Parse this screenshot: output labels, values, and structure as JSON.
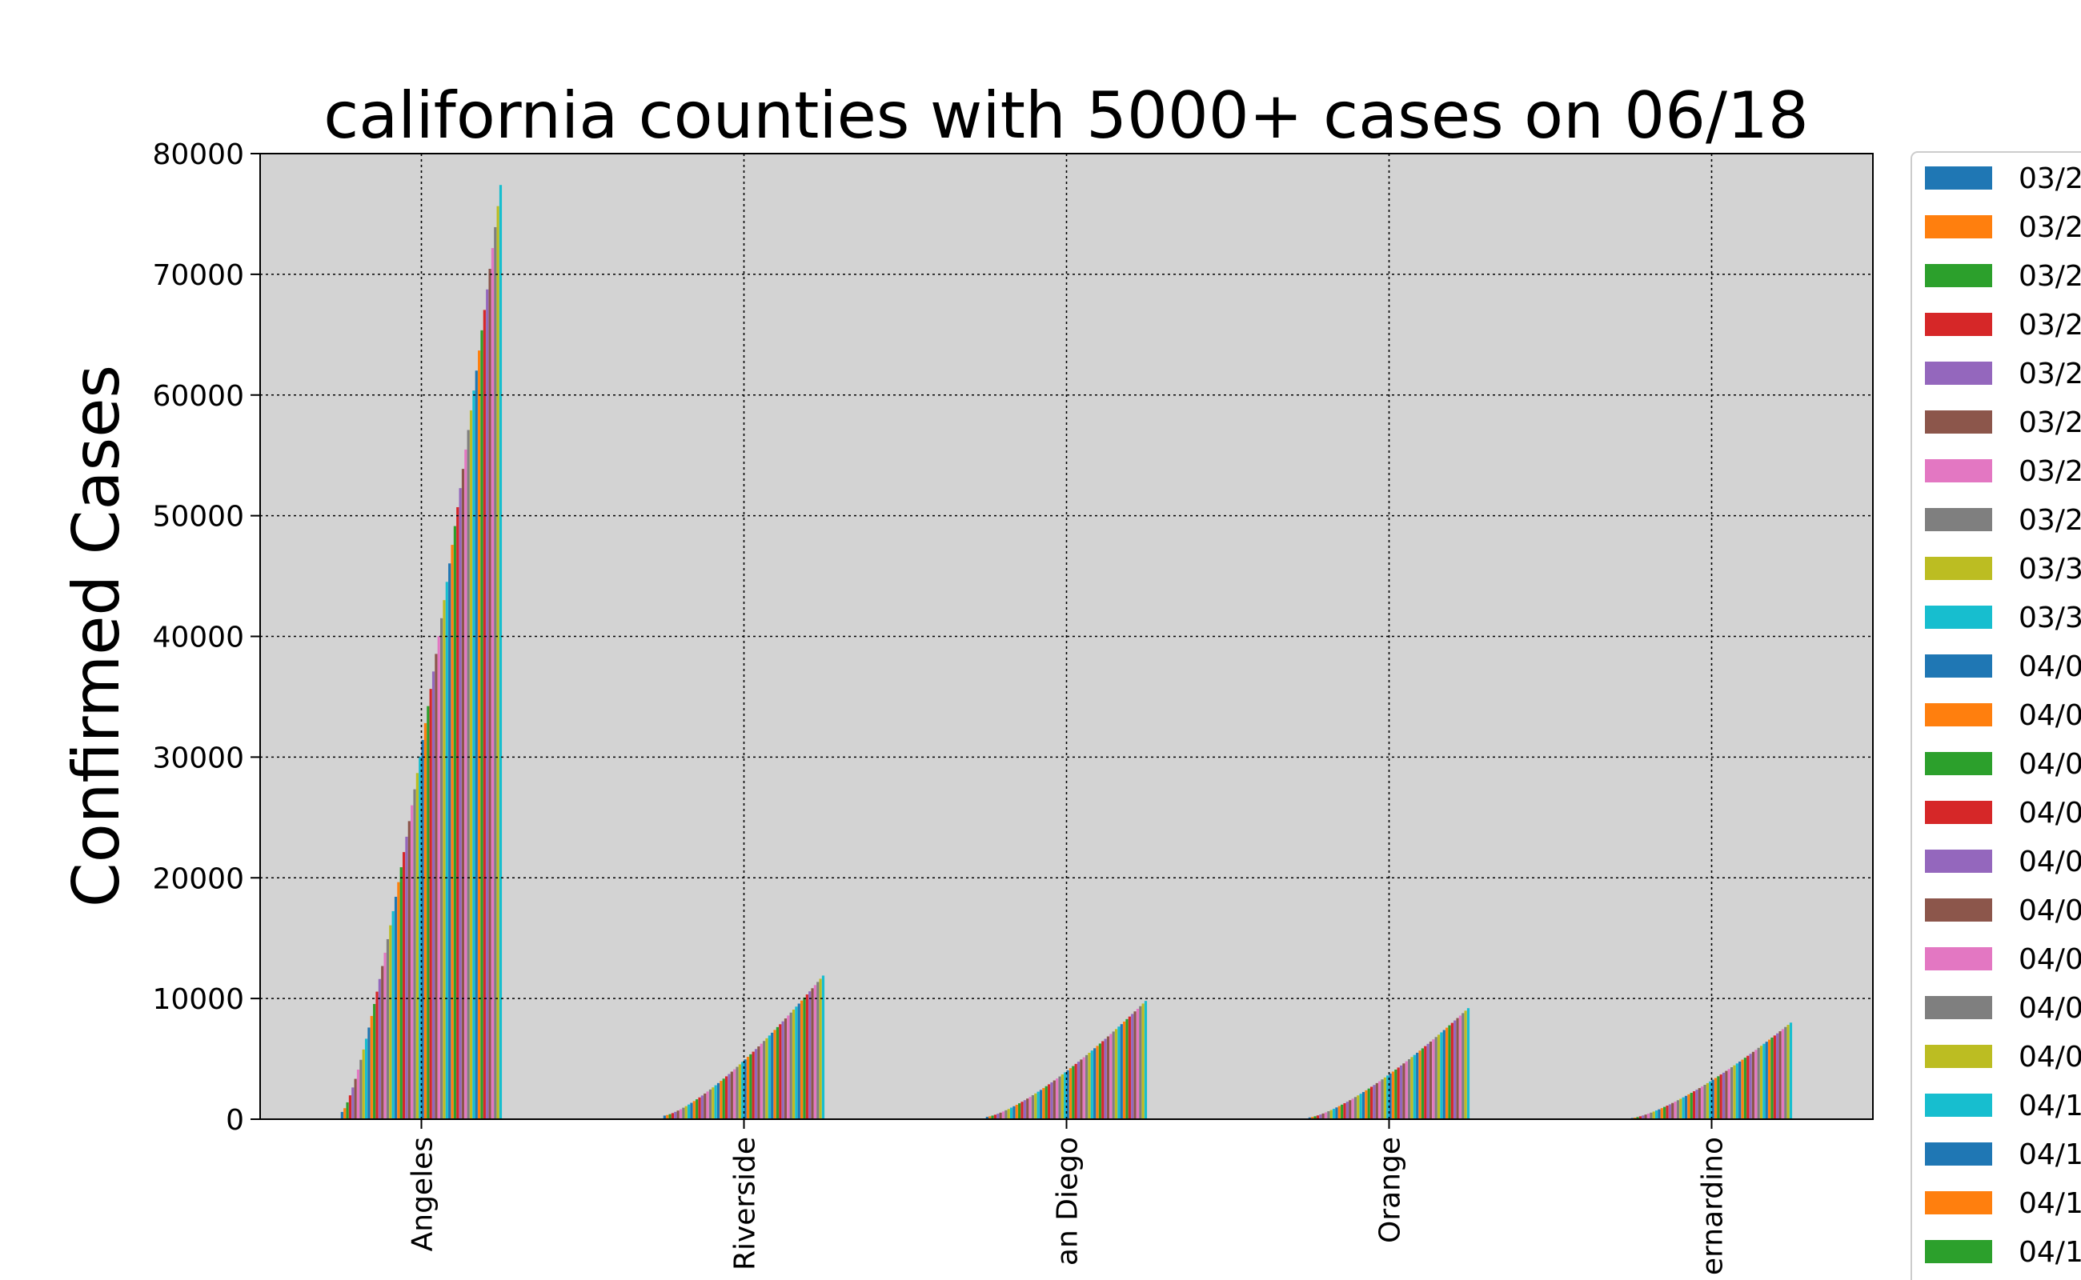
{
  "chart_data": {
    "type": "bar",
    "title": "california counties with 5000+ cases on 06/18",
    "xlabel": "",
    "ylabel": "Confirmed Cases",
    "ylim": [
      0,
      80000
    ],
    "yticks": [
      0,
      10000,
      20000,
      30000,
      40000,
      50000,
      60000,
      70000,
      80000
    ],
    "grid": true,
    "legend_position": "right (clipped)",
    "categories": [
      "Angeles",
      "Riverside",
      "an Diego",
      "Orange",
      "ernardino"
    ],
    "final_values": [
      77400,
      11900,
      9800,
      9200,
      8000
    ],
    "start_values": [
      600,
      300,
      200,
      150,
      100
    ],
    "bars_per_category": 60,
    "growth_exponent": 1.35,
    "series_colors": [
      "#1f77b4",
      "#ff7f0e",
      "#2ca02c",
      "#d62728",
      "#9467bd",
      "#8c564b",
      "#e377c2",
      "#7f7f7f",
      "#bcbd22",
      "#17becf"
    ],
    "legend_entries": [
      {
        "label": "03/2",
        "color": "#1f77b4"
      },
      {
        "label": "03/2",
        "color": "#ff7f0e"
      },
      {
        "label": "03/2",
        "color": "#2ca02c"
      },
      {
        "label": "03/2",
        "color": "#d62728"
      },
      {
        "label": "03/2",
        "color": "#9467bd"
      },
      {
        "label": "03/2",
        "color": "#8c564b"
      },
      {
        "label": "03/2",
        "color": "#e377c2"
      },
      {
        "label": "03/2",
        "color": "#7f7f7f"
      },
      {
        "label": "03/3",
        "color": "#bcbd22"
      },
      {
        "label": "03/3",
        "color": "#17becf"
      },
      {
        "label": "04/0",
        "color": "#1f77b4"
      },
      {
        "label": "04/0",
        "color": "#ff7f0e"
      },
      {
        "label": "04/0",
        "color": "#2ca02c"
      },
      {
        "label": "04/0",
        "color": "#d62728"
      },
      {
        "label": "04/0",
        "color": "#9467bd"
      },
      {
        "label": "04/0",
        "color": "#8c564b"
      },
      {
        "label": "04/0",
        "color": "#e377c2"
      },
      {
        "label": "04/0",
        "color": "#7f7f7f"
      },
      {
        "label": "04/0",
        "color": "#bcbd22"
      },
      {
        "label": "04/1",
        "color": "#17becf"
      },
      {
        "label": "04/1",
        "color": "#1f77b4"
      },
      {
        "label": "04/1",
        "color": "#ff7f0e"
      },
      {
        "label": "04/1",
        "color": "#2ca02c"
      }
    ],
    "plot_background": "#d3d3d3"
  }
}
